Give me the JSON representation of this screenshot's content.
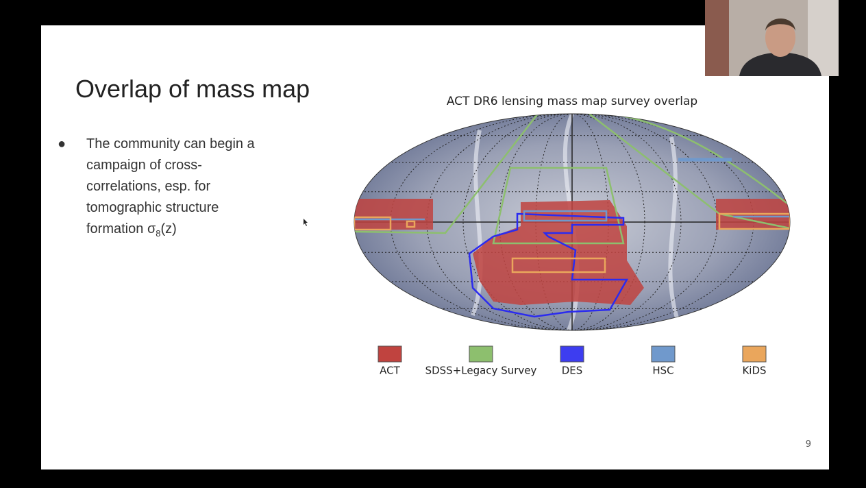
{
  "slide": {
    "title": "Overlap of mass map",
    "bullet": {
      "text": "The community can begin a campaign of cross-correlations, esp. for tomographic structure formation",
      "symbol": "σ",
      "subscript": "8",
      "suffix": "(z)"
    },
    "figure": {
      "title": "ACT DR6 lensing mass map survey overlap",
      "legend": [
        {
          "name": "ACT",
          "color": "#c0433f"
        },
        {
          "name": "SDSS+Legacy Survey",
          "color": "#8dbf6e"
        },
        {
          "name": "DES",
          "color": "#3d3df0"
        },
        {
          "name": "HSC",
          "color": "#7099cc"
        },
        {
          "name": "KiDS",
          "color": "#eaa65c"
        }
      ]
    },
    "page_number": "9"
  }
}
